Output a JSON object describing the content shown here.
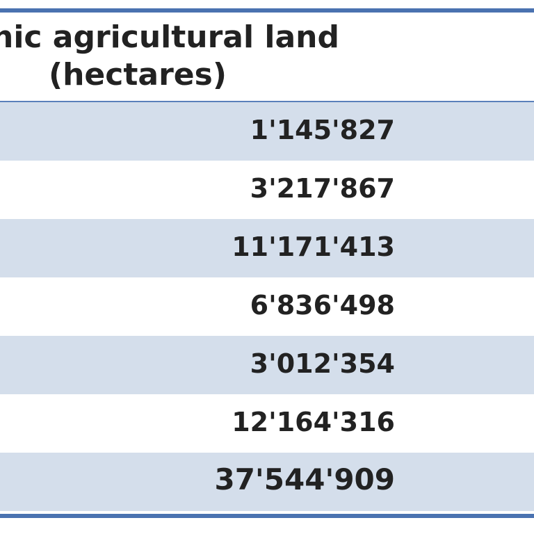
{
  "table": {
    "header_line1": "anic agricultural land",
    "header_line2": "(hectares)",
    "rows": [
      {
        "value": "1'145'827"
      },
      {
        "value": "3'217'867"
      },
      {
        "value": "11'171'413"
      },
      {
        "value": "6'836'498"
      },
      {
        "value": "3'012'354"
      },
      {
        "value": "12'164'316"
      },
      {
        "value": "37'544'909"
      }
    ],
    "colors": {
      "rule": "#4a72b0",
      "shaded_row": "#d4deeb",
      "text": "#222222"
    }
  }
}
